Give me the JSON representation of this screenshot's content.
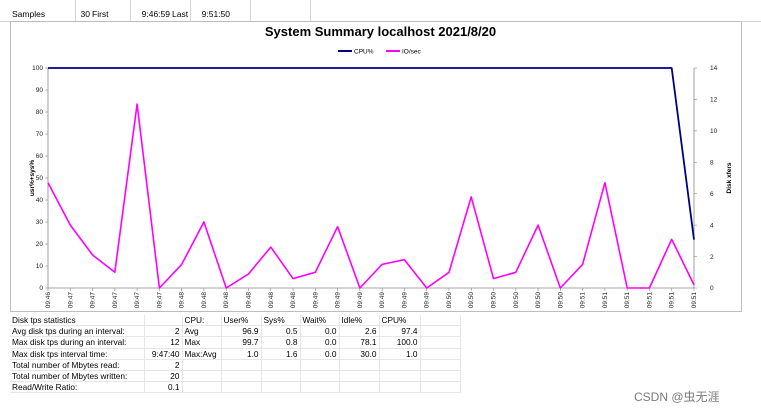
{
  "header": {
    "samples_label": "Samples",
    "samples_value": "30",
    "first_label": "First",
    "first_value": "9:46:59",
    "last_label": "Last",
    "last_value": "9:51:50"
  },
  "chart_data": {
    "type": "line",
    "title": "System Summary localhost  2021/8/20",
    "ylabel": "usr%+sys%",
    "y2label": "Disk xfers",
    "ylim": [
      0,
      100
    ],
    "y2lim": [
      0,
      14
    ],
    "yticks": [
      "0",
      "10",
      "20",
      "30",
      "40",
      "50",
      "60",
      "70",
      "80",
      "90",
      "100"
    ],
    "y2ticks": [
      "0",
      "2",
      "4",
      "6",
      "8",
      "10",
      "12",
      "14"
    ],
    "categories": [
      "09:46",
      "09:47",
      "09:47",
      "09:47",
      "09:47",
      "09:47",
      "09:48",
      "09:48",
      "09:48",
      "09:48",
      "09:48",
      "09:48",
      "09:49",
      "09:49",
      "09:49",
      "09:49",
      "09:49",
      "09:49",
      "09:50",
      "09:50",
      "09:50",
      "09:50",
      "09:50",
      "09:50",
      "09:51",
      "09:51",
      "09:51",
      "09:51",
      "09:51",
      "09:51"
    ],
    "legend_position": "top-center",
    "series": [
      {
        "name": "CPU%",
        "axis": "left",
        "color": "#000080",
        "values": [
          100,
          100,
          100,
          100,
          100,
          100,
          100,
          100,
          100,
          100,
          100,
          100,
          100,
          100,
          100,
          100,
          100,
          100,
          100,
          100,
          100,
          100,
          100,
          100,
          100,
          100,
          100,
          100,
          100,
          22
        ]
      },
      {
        "name": "IO/sec",
        "axis": "right",
        "color": "#ff00ff",
        "values": [
          6.7,
          4.0,
          2.1,
          1.0,
          11.7,
          0,
          1.5,
          4.2,
          0,
          0.9,
          2.6,
          0.6,
          1.0,
          3.9,
          0,
          1.5,
          1.8,
          0,
          1.0,
          5.8,
          0.6,
          1.0,
          4.0,
          0,
          1.5,
          6.7,
          0,
          0,
          3.1,
          0.2
        ]
      }
    ]
  },
  "stats": {
    "rows": [
      [
        "Disk tps statistics",
        "",
        "CPU:",
        "User%",
        "Sys%",
        "Wait%",
        "Idle%",
        "CPU%",
        ""
      ],
      [
        "Avg disk tps during an interval:",
        "2",
        "Avg",
        "96.9",
        "0.5",
        "0.0",
        "2.6",
        "97.4",
        ""
      ],
      [
        "Max disk tps during an interval:",
        "12",
        "Max",
        "99.7",
        "0.8",
        "0.0",
        "78.1",
        "100.0",
        ""
      ],
      [
        "Max disk tps interval time:",
        "9:47:40",
        "Max:Avg",
        "1.0",
        "1.6",
        "0.0",
        "30.0",
        "1.0",
        ""
      ],
      [
        "Total number of Mbytes read:",
        "2",
        "",
        "",
        "",
        "",
        "",
        "",
        ""
      ],
      [
        "Total number of Mbytes written:",
        "20",
        "",
        "",
        "",
        "",
        "",
        "",
        ""
      ],
      [
        "Read/Write Ratio:",
        "0.1",
        "",
        "",
        "",
        "",
        "",
        "",
        ""
      ]
    ]
  },
  "watermark": "CSDN @虫无涯"
}
